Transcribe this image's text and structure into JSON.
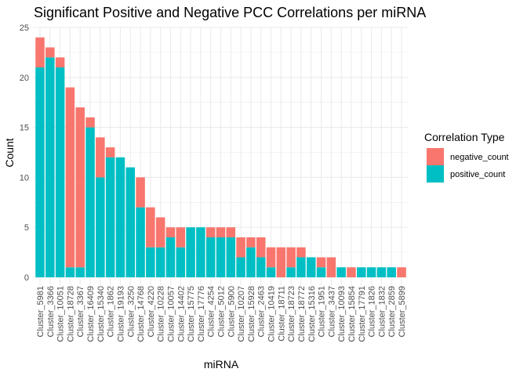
{
  "chart_data": {
    "type": "bar",
    "stacked": true,
    "title": "Significant Positive and Negative PCC Correlations per miRNA",
    "xlabel": "miRNA",
    "ylabel": "Count",
    "ylim": [
      0,
      25
    ],
    "yticks": [
      0,
      5,
      10,
      15,
      20,
      25
    ],
    "grid": true,
    "legend": {
      "title": "Correlation Type",
      "position": "right",
      "entries": [
        {
          "name": "negative_count",
          "color": "#F8766D"
        },
        {
          "name": "positive_count",
          "color": "#00BFC4"
        }
      ]
    },
    "categories": [
      "Cluster_5981",
      "Cluster_3366",
      "Cluster_10051",
      "Cluster_18728",
      "Cluster_3367",
      "Cluster_16409",
      "Cluster_15340",
      "Cluster_1862",
      "Cluster_19193",
      "Cluster_3250",
      "Cluster_14768",
      "Cluster_4220",
      "Cluster_10228",
      "Cluster_10057",
      "Cluster_14402",
      "Cluster_15775",
      "Cluster_17776",
      "Cluster_4254",
      "Cluster_5012",
      "Cluster_5900",
      "Cluster_10207",
      "Cluster_15928",
      "Cluster_2463",
      "Cluster_10419",
      "Cluster_18711",
      "Cluster_18723",
      "Cluster_18772",
      "Cluster_15316",
      "Cluster_1951",
      "Cluster_3437",
      "Cluster_10093",
      "Cluster_15854",
      "Cluster_17791",
      "Cluster_1826",
      "Cluster_1832",
      "Cluster_2859",
      "Cluster_5899"
    ],
    "series": [
      {
        "name": "positive_count",
        "color": "#00BFC4",
        "values": [
          21,
          22,
          21,
          1,
          1,
          15,
          10,
          12,
          12,
          11,
          7,
          3,
          3,
          4,
          3,
          5,
          5,
          4,
          4,
          4,
          2,
          3,
          2,
          1,
          0,
          1,
          2,
          2,
          1,
          0,
          1,
          0,
          1,
          1,
          1,
          1,
          0
        ]
      },
      {
        "name": "negative_count",
        "color": "#F8766D",
        "values": [
          3,
          1,
          1,
          18,
          16,
          1,
          4,
          1,
          0,
          0,
          3,
          4,
          3,
          1,
          2,
          0,
          0,
          1,
          1,
          1,
          2,
          1,
          2,
          2,
          3,
          2,
          1,
          0,
          1,
          2,
          0,
          1,
          0,
          0,
          0,
          0,
          1
        ]
      }
    ]
  }
}
